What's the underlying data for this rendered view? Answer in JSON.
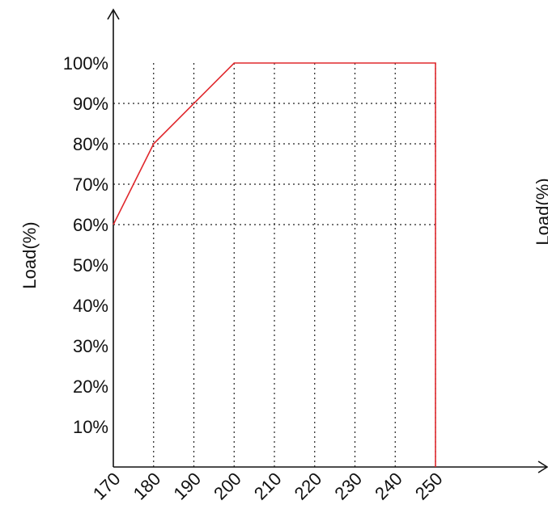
{
  "chart_data": {
    "type": "line",
    "ylabel": "Load(%)",
    "right_ylabel": "Load(%)",
    "xlabel": "",
    "x_ticks": [
      "170",
      "180",
      "190",
      "200",
      "210",
      "220",
      "230",
      "240",
      "250"
    ],
    "y_ticks": [
      "10%",
      "20%",
      "30%",
      "40%",
      "50%",
      "60%",
      "70%",
      "80%",
      "90%",
      "100%"
    ],
    "xlim": [
      170,
      250
    ],
    "ylim": [
      0,
      100
    ],
    "grid": "dotted",
    "series": [
      {
        "x": [
          170,
          180,
          200,
          250,
          250
        ],
        "y": [
          60,
          80,
          100,
          100,
          0
        ],
        "color": "#e0282d"
      }
    ],
    "dotted_guides_y": [
      60,
      70,
      80,
      90
    ]
  }
}
